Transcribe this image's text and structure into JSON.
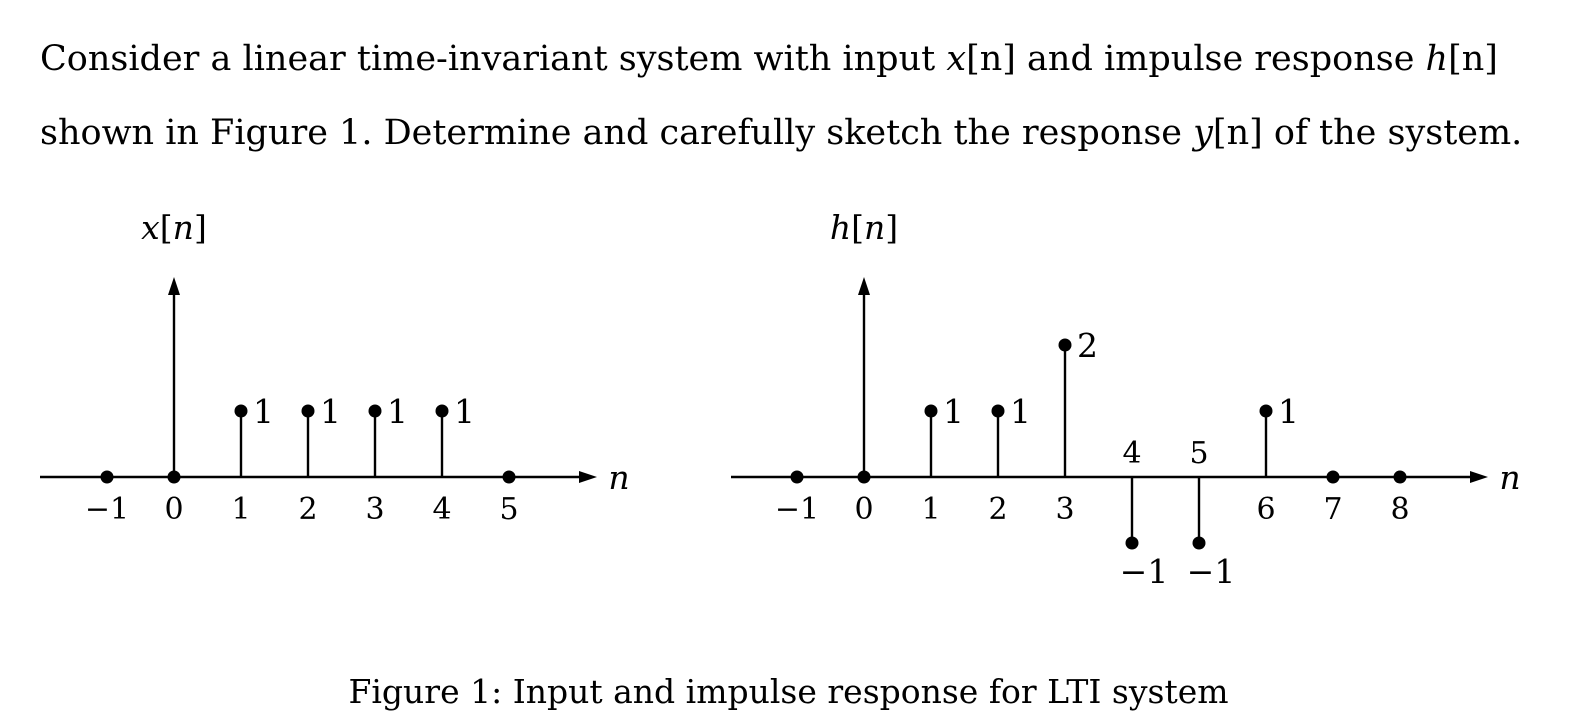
{
  "problem": {
    "part1": "Consider a linear time-invariant system with input ",
    "x_symbol": "x",
    "x_index": "[n]",
    "part2": " and impulse response ",
    "h_symbol": "h",
    "h_index": "[n]",
    "part3": " shown in Figure 1. Determine and carefully sketch the response ",
    "y_symbol": "y",
    "y_index": "[n]",
    "part4": " of the system."
  },
  "caption": "Figure 1: Input and impulse response for LTI system",
  "chart_data": [
    {
      "type": "stem",
      "ylabel": "x[n]",
      "xlabel": "n",
      "x": [
        -1,
        0,
        1,
        2,
        3,
        4,
        5
      ],
      "y": [
        0,
        0,
        1,
        1,
        1,
        1,
        0
      ],
      "value_labels": [
        "",
        "",
        "1",
        "1",
        "1",
        "1",
        ""
      ],
      "tick_labels": [
        "−1",
        "0",
        "1",
        "2",
        "3",
        "4",
        "5"
      ]
    },
    {
      "type": "stem",
      "ylabel": "h[n]",
      "xlabel": "n",
      "x": [
        -1,
        0,
        1,
        2,
        3,
        4,
        5,
        6,
        7,
        8
      ],
      "y": [
        0,
        0,
        1,
        1,
        2,
        -1,
        -1,
        1,
        0,
        0
      ],
      "value_labels": [
        "",
        "",
        "1",
        "1",
        "2",
        "−1",
        "−1",
        "1",
        "",
        ""
      ],
      "tick_labels": [
        "−1",
        "0",
        "1",
        "2",
        "3",
        "4",
        "5",
        "6",
        "7",
        "8"
      ]
    }
  ]
}
